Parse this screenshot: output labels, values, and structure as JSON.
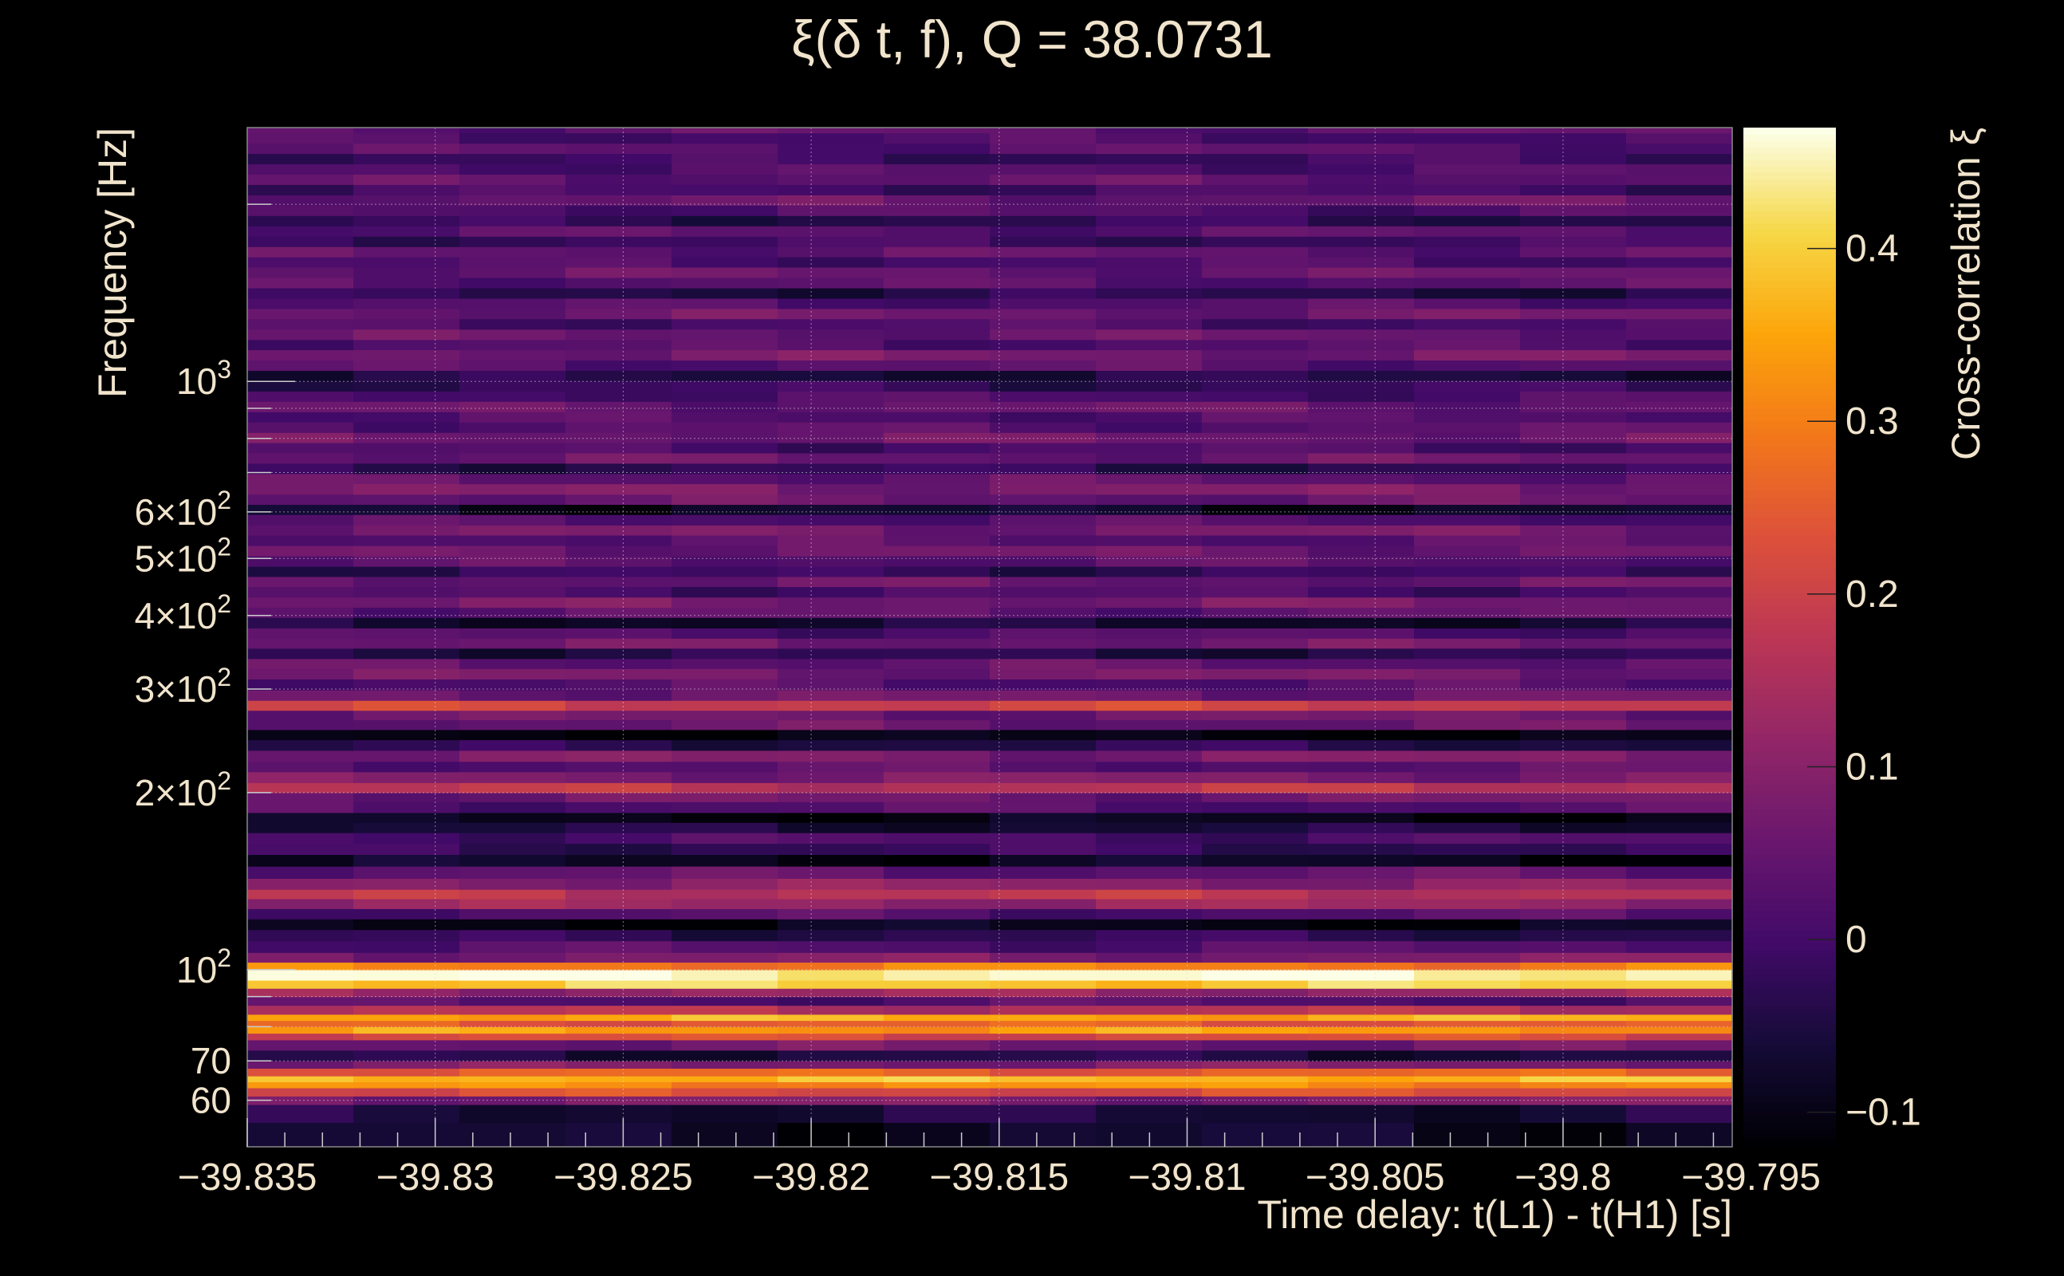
{
  "chart_data": {
    "type": "heatmap",
    "title": "ξ(δ t, f), Q = 38.0731",
    "xlabel": "Time delay: t(L1) - t(H1) [s]",
    "ylabel": "Frequency [Hz]",
    "colorbar_label": "Cross-correlation ξ",
    "xlim": [
      -39.835,
      -39.7955
    ],
    "ylim": [
      50,
      2700
    ],
    "yscale": "log",
    "grid": true,
    "colormap": "inferno",
    "zlim": [
      -0.12,
      0.47
    ],
    "x_ticks": [
      {
        "value": -39.835,
        "label": "−39.835"
      },
      {
        "value": -39.83,
        "label": "−39.83"
      },
      {
        "value": -39.825,
        "label": "−39.825"
      },
      {
        "value": -39.82,
        "label": "−39.82"
      },
      {
        "value": -39.815,
        "label": "−39.815"
      },
      {
        "value": -39.81,
        "label": "−39.81"
      },
      {
        "value": -39.805,
        "label": "−39.805"
      },
      {
        "value": -39.8,
        "label": "−39.8"
      },
      {
        "value": -39.795,
        "label": "−39.795"
      }
    ],
    "y_ticks": [
      {
        "value": 60,
        "base": "60",
        "exp": ""
      },
      {
        "value": 70,
        "base": "70",
        "exp": ""
      },
      {
        "value": 100,
        "base": "10",
        "exp": "2"
      },
      {
        "value": 200,
        "base": "2×10",
        "exp": "2"
      },
      {
        "value": 300,
        "base": "3×10",
        "exp": "2"
      },
      {
        "value": 400,
        "base": "4×10",
        "exp": "2"
      },
      {
        "value": 500,
        "base": "5×10",
        "exp": "2"
      },
      {
        "value": 600,
        "base": "6×10",
        "exp": "2"
      },
      {
        "value": 1000,
        "base": "10",
        "exp": "3"
      }
    ],
    "y_grid_values": [
      60,
      70,
      80,
      90,
      100,
      200,
      300,
      400,
      500,
      600,
      700,
      800,
      900,
      1000,
      2000
    ],
    "colorbar_ticks": [
      {
        "value": -0.1,
        "label": "−0.1"
      },
      {
        "value": 0,
        "label": "0"
      },
      {
        "value": 0.1,
        "label": "0.1"
      },
      {
        "value": 0.2,
        "label": "0.2"
      },
      {
        "value": 0.3,
        "label": "0.3"
      },
      {
        "value": 0.4,
        "label": "0.4"
      }
    ],
    "bands": [
      {
        "f": 50,
        "xi": -0.08
      },
      {
        "f": 55,
        "xi": -0.06
      },
      {
        "f": 59,
        "xi": 0.08
      },
      {
        "f": 61,
        "xi": 0.22
      },
      {
        "f": 63,
        "xi": 0.32
      },
      {
        "f": 64.5,
        "xi": 0.38
      },
      {
        "f": 66,
        "xi": 0.26
      },
      {
        "f": 68,
        "xi": 0.08
      },
      {
        "f": 70,
        "xi": -0.05
      },
      {
        "f": 73,
        "xi": 0.06
      },
      {
        "f": 76,
        "xi": 0.22
      },
      {
        "f": 78,
        "xi": 0.34
      },
      {
        "f": 80,
        "xi": 0.25
      },
      {
        "f": 82,
        "xi": 0.36
      },
      {
        "f": 84,
        "xi": 0.16
      },
      {
        "f": 87,
        "xi": 0.02
      },
      {
        "f": 90,
        "xi": 0.12
      },
      {
        "f": 93,
        "xi": 0.4
      },
      {
        "f": 96,
        "xi": 0.46
      },
      {
        "f": 100,
        "xi": 0.3
      },
      {
        "f": 103,
        "xi": 0.08
      },
      {
        "f": 107,
        "xi": 0.02
      },
      {
        "f": 112,
        "xi": -0.03
      },
      {
        "f": 117,
        "xi": -0.1
      },
      {
        "f": 122,
        "xi": 0.02
      },
      {
        "f": 127,
        "xi": 0.12
      },
      {
        "f": 132,
        "xi": 0.17
      },
      {
        "f": 137,
        "xi": 0.1
      },
      {
        "f": 143,
        "xi": 0.04
      },
      {
        "f": 150,
        "xi": -0.09
      },
      {
        "f": 157,
        "xi": -0.02
      },
      {
        "f": 164,
        "xi": 0.01
      },
      {
        "f": 171,
        "xi": -0.06
      },
      {
        "f": 178,
        "xi": -0.1
      },
      {
        "f": 185,
        "xi": 0.02
      },
      {
        "f": 193,
        "xi": 0.06
      },
      {
        "f": 200,
        "xi": 0.17
      },
      {
        "f": 208,
        "xi": 0.08
      },
      {
        "f": 217,
        "xi": 0.03
      },
      {
        "f": 226,
        "xi": 0.08
      },
      {
        "f": 236,
        "xi": -0.04
      },
      {
        "f": 246,
        "xi": -0.11
      },
      {
        "f": 256,
        "xi": 0.05
      },
      {
        "f": 266,
        "xi": 0.06
      },
      {
        "f": 276,
        "xi": 0.2
      },
      {
        "f": 287,
        "xi": 0.06
      },
      {
        "f": 299,
        "xi": 0.02
      },
      {
        "f": 312,
        "xi": 0.07
      },
      {
        "f": 325,
        "xi": 0.04
      },
      {
        "f": 338,
        "xi": -0.04
      },
      {
        "f": 352,
        "xi": 0.06
      },
      {
        "f": 366,
        "xi": 0.02
      },
      {
        "f": 381,
        "xi": -0.07
      },
      {
        "f": 397,
        "xi": 0.04
      },
      {
        "f": 413,
        "xi": 0.07
      },
      {
        "f": 430,
        "xi": 0.01
      },
      {
        "f": 448,
        "xi": 0.05
      },
      {
        "f": 466,
        "xi": -0.02
      },
      {
        "f": 485,
        "xi": 0.03
      },
      {
        "f": 505,
        "xi": 0.06
      },
      {
        "f": 526,
        "xi": 0.03
      },
      {
        "f": 548,
        "xi": 0.07
      },
      {
        "f": 570,
        "xi": 0.02
      },
      {
        "f": 594,
        "xi": -0.08
      },
      {
        "f": 618,
        "xi": 0.05
      },
      {
        "f": 643,
        "xi": 0.08
      },
      {
        "f": 670,
        "xi": 0.04
      },
      {
        "f": 697,
        "xi": -0.03
      },
      {
        "f": 726,
        "xi": 0.05
      },
      {
        "f": 756,
        "xi": 0.01
      },
      {
        "f": 787,
        "xi": 0.06
      },
      {
        "f": 819,
        "xi": 0.03
      },
      {
        "f": 853,
        "xi": 0.02
      },
      {
        "f": 888,
        "xi": 0.05
      },
      {
        "f": 925,
        "xi": 0.01
      },
      {
        "f": 963,
        "xi": -0.02
      },
      {
        "f": 1003,
        "xi": -0.05
      },
      {
        "f": 1044,
        "xi": 0.03
      },
      {
        "f": 1087,
        "xi": 0.07
      },
      {
        "f": 1132,
        "xi": 0.02
      },
      {
        "f": 1178,
        "xi": 0.05
      },
      {
        "f": 1227,
        "xi": 0.01
      },
      {
        "f": 1278,
        "xi": 0.06
      },
      {
        "f": 1330,
        "xi": 0.02
      },
      {
        "f": 1385,
        "xi": -0.04
      },
      {
        "f": 1442,
        "xi": 0.03
      },
      {
        "f": 1502,
        "xi": 0.05
      },
      {
        "f": 1564,
        "xi": 0.01
      },
      {
        "f": 1628,
        "xi": 0.04
      },
      {
        "f": 1695,
        "xi": -0.01
      },
      {
        "f": 1765,
        "xi": 0.03
      },
      {
        "f": 1838,
        "xi": -0.03
      },
      {
        "f": 1914,
        "xi": 0.02
      },
      {
        "f": 1993,
        "xi": 0.05
      },
      {
        "f": 2075,
        "xi": 0.0
      },
      {
        "f": 2161,
        "xi": 0.04
      },
      {
        "f": 2250,
        "xi": 0.02
      },
      {
        "f": 2343,
        "xi": -0.01
      },
      {
        "f": 2440,
        "xi": 0.03
      },
      {
        "f": 2540,
        "xi": 0.01
      },
      {
        "f": 2645,
        "xi": 0.04
      },
      {
        "f": 2700,
        "xi": 0.04
      }
    ]
  }
}
